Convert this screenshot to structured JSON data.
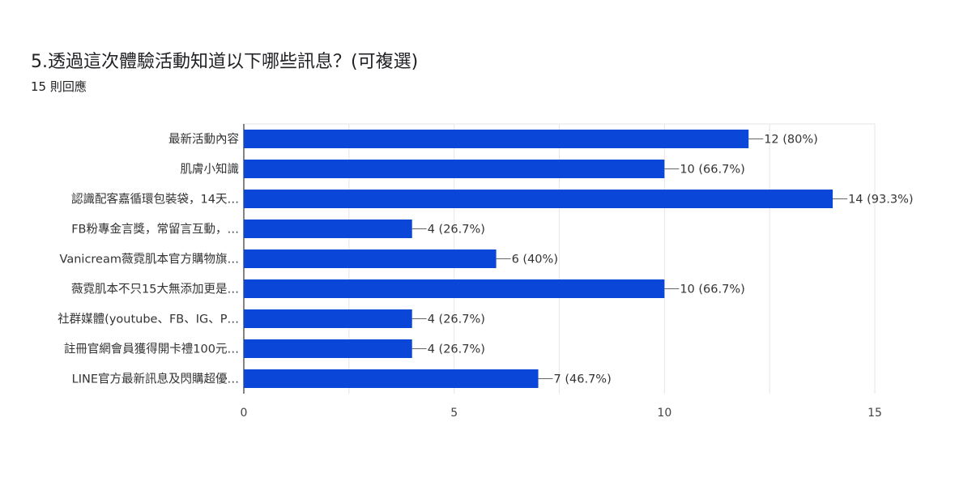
{
  "header": {
    "title": "5.透過這次體驗活動知道以下哪些訊息？(可複選)",
    "subtitle": "15 則回應"
  },
  "colors": {
    "bar": "#0a47d8",
    "grid": "#e6e6e6",
    "axis": "#333333",
    "connector": "#666666"
  },
  "chart_data": {
    "type": "bar",
    "orientation": "horizontal",
    "categories": [
      "最新活動內容",
      "肌膚小知識",
      "認識配客嘉循環包裝袋，14天…",
      "FB粉專金言獎，常留言互動，…",
      "Vanicream薇霓肌本官方購物旗…",
      "薇霓肌本不只15大無添加更是…",
      "社群媒體(youtube、FB、IG、P…",
      "註冊官網會員獲得開卡禮100元…",
      "LINE官方最新訊息及閃購超優…"
    ],
    "values": [
      12,
      10,
      14,
      4,
      6,
      10,
      4,
      4,
      7
    ],
    "value_labels": [
      "12 (80%)",
      "10 (66.7%)",
      "14 (93.3%)",
      "4 (26.7%)",
      "6 (40%)",
      "10 (66.7%)",
      "4 (26.7%)",
      "4 (26.7%)",
      "7 (46.7%)"
    ],
    "xlim": [
      0,
      15
    ],
    "xticks": [
      0,
      5,
      10,
      15
    ],
    "xtick_labels": [
      "0",
      "5",
      "10",
      "15"
    ],
    "grid": true,
    "legend": false
  }
}
